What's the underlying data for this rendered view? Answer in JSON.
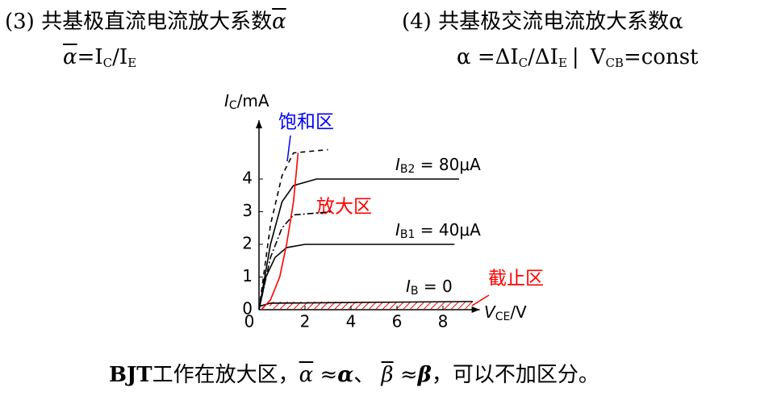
{
  "item3": {
    "label": "(3)",
    "text": "共基极直流电流放大系数",
    "symbol": "α",
    "formula": {
      "lhs": "α",
      "eq": "=I",
      "sub1": "C",
      "mid": "/I",
      "sub2": "E"
    }
  },
  "item4": {
    "label": "(4)",
    "text": "共基极交流电流放大系数α",
    "formula": {
      "lhs": "α =ΔI",
      "sub1": "C",
      "mid": "/ΔI",
      "sub2": "E",
      "bar": "|",
      "cond": "V",
      "sub3": "CB",
      "rest": "=const"
    }
  },
  "chart_data": {
    "type": "line",
    "y_label": {
      "main": "I",
      "sub": "C",
      "unit": "/mA"
    },
    "x_label": {
      "main": "V",
      "sub": "CE",
      "unit": "/V"
    },
    "xlim": [
      0,
      9.6
    ],
    "ylim": [
      0,
      5.8
    ],
    "xticks": [
      0,
      2,
      4,
      6,
      8
    ],
    "yticks": [
      0,
      1,
      2,
      3,
      4
    ],
    "regions": {
      "saturation": "饱和区",
      "active": "放大区",
      "cutoff": "截止区"
    },
    "curve_labels": [
      {
        "main": "I",
        "sub": "B2",
        "rest": " = 80μA"
      },
      {
        "main": "I",
        "sub": "B1",
        "rest": " = 40μA"
      },
      {
        "main": "I",
        "sub": "B",
        "rest": " = 0"
      }
    ],
    "series": [
      {
        "color": "#000000",
        "dash": "6,5",
        "x": [
          0,
          0.5,
          1,
          1.5,
          3
        ],
        "values": [
          0,
          2.6,
          4.1,
          4.8,
          4.9
        ]
      },
      {
        "color": "#000000",
        "dash": "",
        "x": [
          0,
          0.5,
          1,
          1.5,
          2.5,
          8.7
        ],
        "values": [
          0,
          2,
          3.3,
          3.8,
          4,
          4
        ]
      },
      {
        "color": "#000000",
        "dash": "8,3,2,3",
        "x": [
          0,
          0.5,
          1,
          1.5,
          3.2
        ],
        "values": [
          0,
          1.6,
          2.5,
          2.9,
          3
        ]
      },
      {
        "color": "#000000",
        "dash": "",
        "x": [
          0,
          0.3,
          0.7,
          1.2,
          2,
          8.5
        ],
        "values": [
          0,
          1,
          1.6,
          1.9,
          2,
          2
        ]
      },
      {
        "color": "#000000",
        "dash": "",
        "x": [
          0,
          0.5,
          9.3
        ],
        "values": [
          0.1,
          0.2,
          0.25
        ]
      },
      {
        "color": "#ff0000",
        "dash": "",
        "x": [
          0.1,
          0.5,
          0.9,
          1.2,
          1.5,
          1.7
        ],
        "values": [
          0,
          0.3,
          1,
          2,
          3.3,
          4.8
        ]
      }
    ]
  },
  "footer": {
    "b1": "BJT",
    "t1": "工作在放大区，",
    "a1": "α",
    "t2": " ≈",
    "a2": "α",
    "t3": "、 ",
    "b2": "β",
    "t4": " ≈",
    "b3": "β",
    "t5": "，可以不加区分。"
  }
}
